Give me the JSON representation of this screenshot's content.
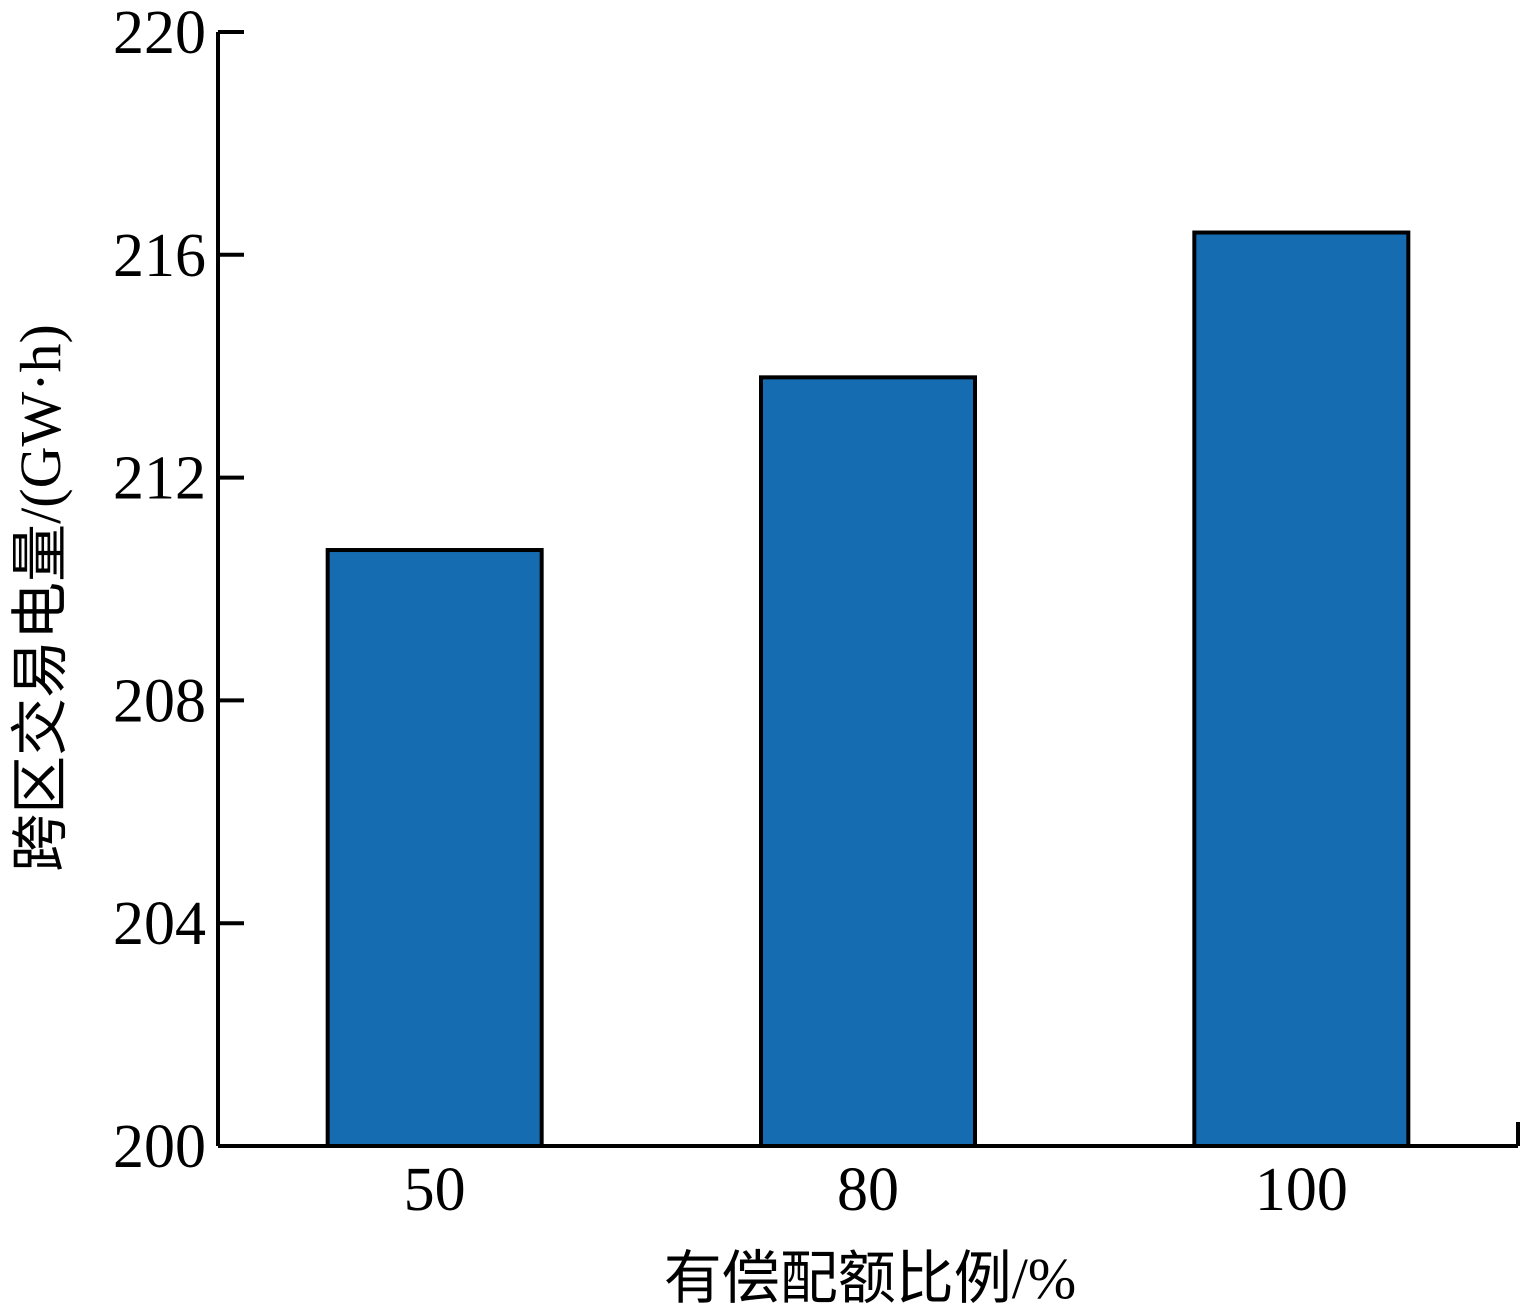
{
  "chart_data": {
    "type": "bar",
    "categories": [
      "50",
      "80",
      "100"
    ],
    "values": [
      210.7,
      213.8,
      216.4
    ],
    "xlabel": "有偿配额比例/%",
    "ylabel": "跨区交易电量/(GW·h)",
    "ylim": [
      200,
      220
    ],
    "yticks": [
      "200",
      "204",
      "208",
      "212",
      "216",
      "220"
    ],
    "grid": false,
    "bar_color": "#156cb0",
    "bar_edge_color": "#000000"
  }
}
